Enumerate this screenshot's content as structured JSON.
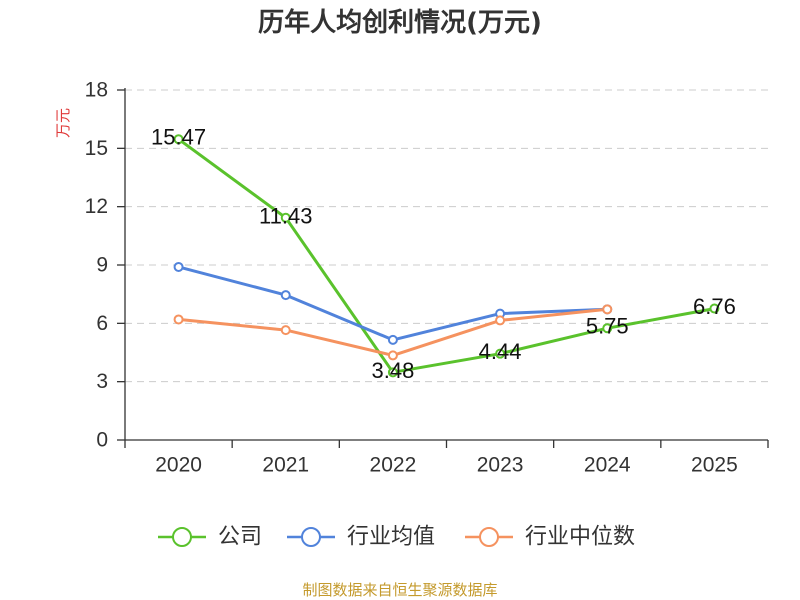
{
  "chart_data": {
    "type": "line",
    "title": "历年人均创利情况(万元)",
    "xlabel": "",
    "ylabel": "万元",
    "categories": [
      "2020",
      "2021",
      "2022",
      "2023",
      "2024",
      "2025"
    ],
    "ylim": [
      0,
      18
    ],
    "yticks": [
      0,
      3,
      6,
      9,
      12,
      15,
      18
    ],
    "grid": true,
    "legend_position": "bottom",
    "series": [
      {
        "name": "公司",
        "color": "#5ac22c",
        "values": [
          15.47,
          11.43,
          3.48,
          4.44,
          5.75,
          6.76
        ],
        "data_labels": [
          "15.47",
          "11.43",
          "3.48",
          "4.44",
          "5.75",
          "6.76"
        ]
      },
      {
        "name": "行业均值",
        "color": "#5183db",
        "values": [
          8.9,
          7.45,
          5.15,
          6.5,
          6.72,
          null
        ]
      },
      {
        "name": "行业中位数",
        "color": "#f5925f",
        "values": [
          6.2,
          5.65,
          4.35,
          6.15,
          6.72,
          null
        ]
      }
    ]
  },
  "source_note": "制图数据来自恒生聚源数据库",
  "colors": {
    "title": "#333333",
    "ylabel": "#e03b3b",
    "axis": "#333333",
    "grid": "#cccccc",
    "source_note": "#c49a2c"
  }
}
